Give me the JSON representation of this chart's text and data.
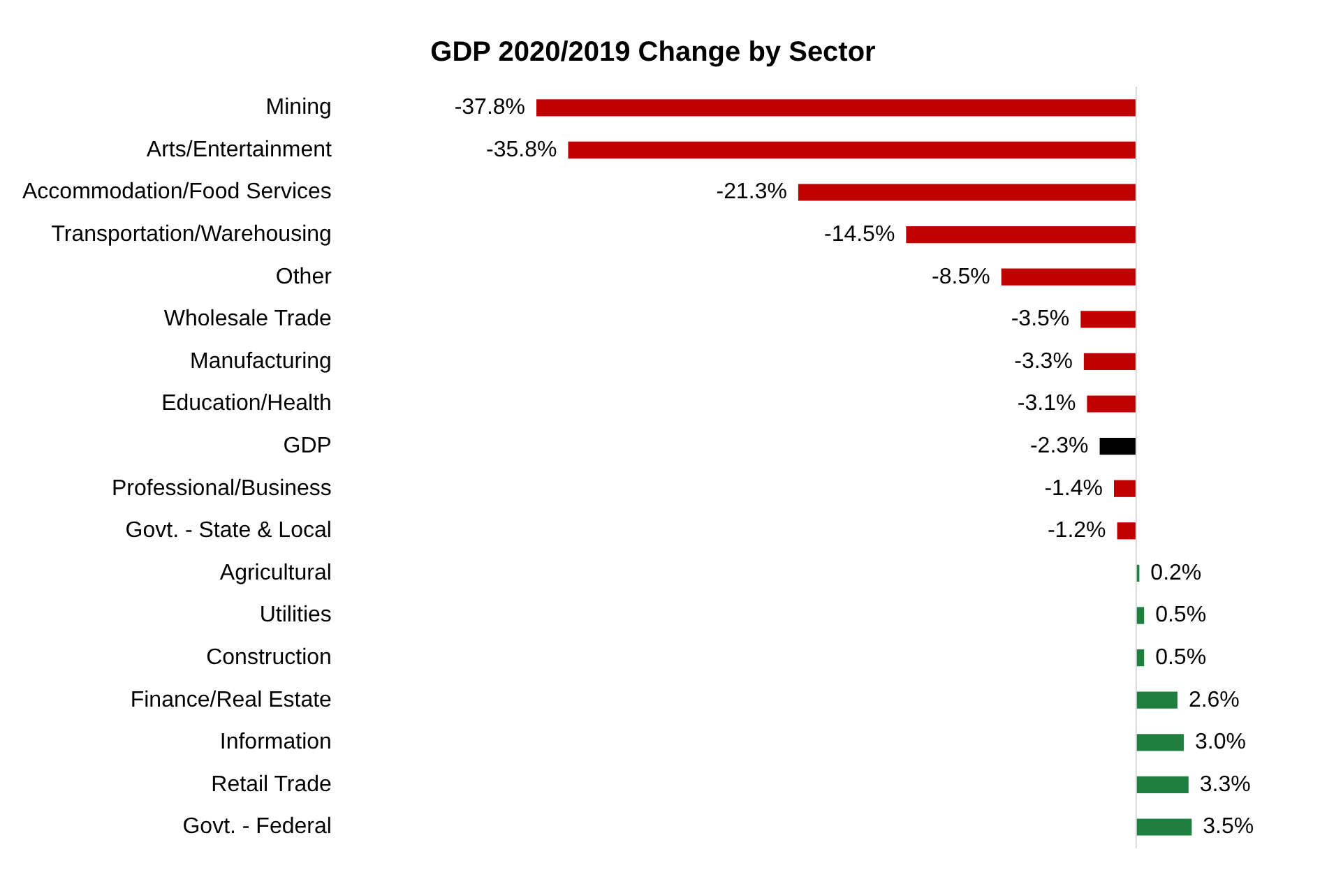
{
  "chart_data": {
    "type": "bar",
    "orientation": "horizontal",
    "title": "GDP 2020/2019 Change by Sector",
    "categories": [
      "Mining",
      "Arts/Entertainment",
      "Accommodation/Food Services",
      "Transportation/Warehousing",
      "Other",
      "Wholesale Trade",
      "Manufacturing",
      "Education/Health",
      "GDP",
      "Professional/Business",
      "Govt. - State & Local",
      "Agricultural",
      "Utilities",
      "Construction",
      "Finance/Real Estate",
      "Information",
      "Retail Trade",
      "Govt. - Federal"
    ],
    "values": [
      -37.8,
      -35.8,
      -21.3,
      -14.5,
      -8.5,
      -3.5,
      -3.3,
      -3.1,
      -2.3,
      -1.4,
      -1.2,
      0.2,
      0.5,
      0.5,
      2.6,
      3.0,
      3.3,
      3.5
    ],
    "value_labels": [
      "-37.8%",
      "-35.8%",
      "-21.3%",
      "-14.5%",
      "-8.5%",
      "-3.5%",
      "-3.3%",
      "-3.1%",
      "-2.3%",
      "-1.4%",
      "-1.2%",
      "0.2%",
      "0.5%",
      "0.5%",
      "2.6%",
      "3.0%",
      "3.3%",
      "3.5%"
    ],
    "colors": [
      "#c00000",
      "#c00000",
      "#c00000",
      "#c00000",
      "#c00000",
      "#c00000",
      "#c00000",
      "#c00000",
      "#000000",
      "#c00000",
      "#c00000",
      "#1e7f3e",
      "#1e7f3e",
      "#1e7f3e",
      "#1e7f3e",
      "#1e7f3e",
      "#1e7f3e",
      "#1e7f3e"
    ],
    "tick_labels": "y",
    "grid": false,
    "legend": false
  }
}
